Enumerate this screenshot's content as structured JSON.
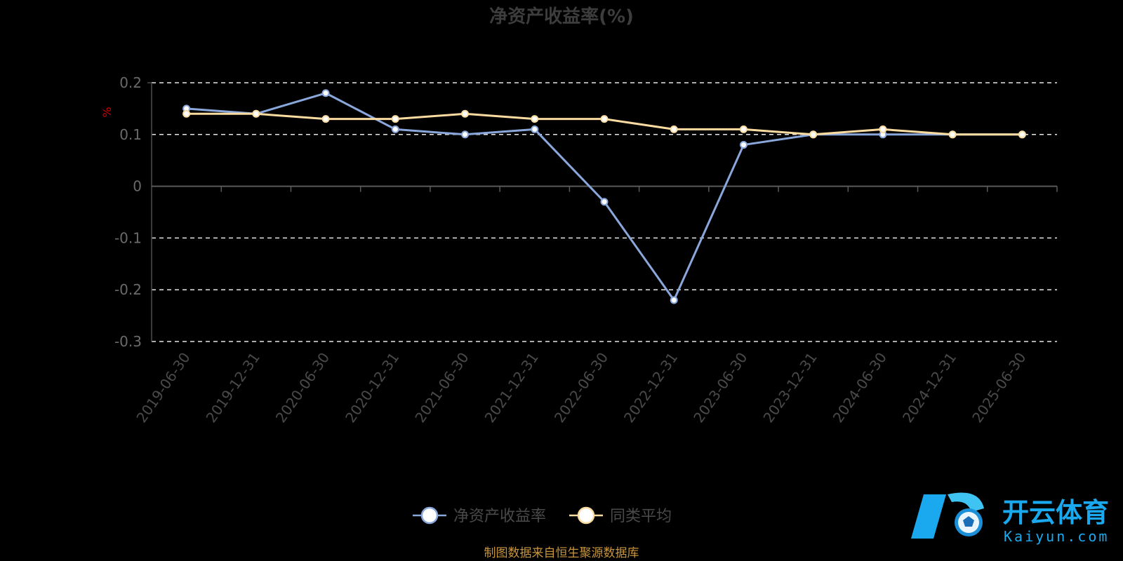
{
  "chart_data": {
    "type": "line",
    "title": "净资产收益率(%)",
    "unit_label": "%",
    "categories": [
      "2019-06-30",
      "2019-12-31",
      "2020-06-30",
      "2020-12-31",
      "2021-06-30",
      "2021-12-31",
      "2022-06-30",
      "2022-12-31",
      "2023-06-30",
      "2023-12-31",
      "2024-06-30",
      "2024-12-31",
      "2025-06-30"
    ],
    "ylim": [
      -0.3,
      0.2
    ],
    "y_ticks": [
      "0.2",
      "0.1",
      "0",
      "-0.1",
      "-0.2",
      "-0.3"
    ],
    "y_tick_values": [
      0.2,
      0.1,
      0,
      -0.1,
      -0.2,
      -0.3
    ],
    "grid": true,
    "legend_position": "bottom-center",
    "series": [
      {
        "name": "净资产收益率",
        "color": "#8aa7dc",
        "values": [
          0.15,
          0.14,
          0.18,
          0.11,
          0.1,
          0.11,
          -0.03,
          -0.22,
          0.08,
          0.1,
          0.1,
          0.1,
          0.1
        ]
      },
      {
        "name": "同类平均",
        "color": "#fbdca0",
        "values": [
          0.14,
          0.14,
          0.13,
          0.13,
          0.14,
          0.13,
          0.13,
          0.11,
          0.11,
          0.1,
          0.11,
          0.1,
          0.1
        ]
      }
    ]
  },
  "source_note": "制图数据来自恒生聚源数据库",
  "watermark": {
    "brand_cn": "开云体育",
    "brand_en": "Kaiyun.com",
    "icon": "kaiyun-logo-icon"
  }
}
